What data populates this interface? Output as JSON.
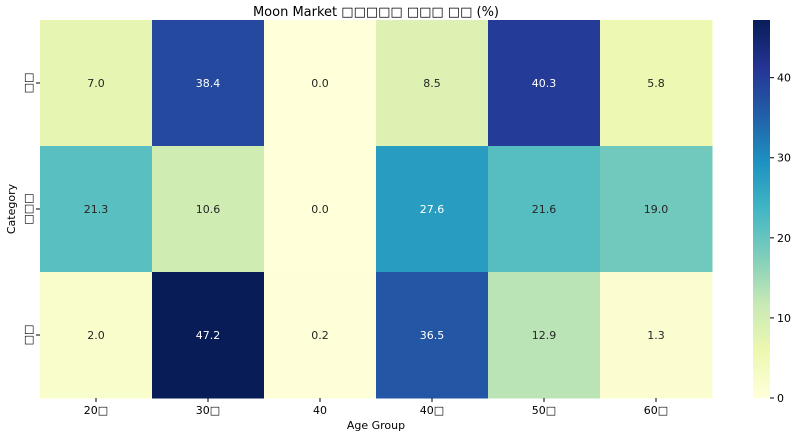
{
  "chart_data": {
    "type": "heatmap",
    "title": "Moon Market □□□□□ □□□ □□ (%)",
    "xlabel": "Age Group",
    "ylabel": "Category",
    "x_categories": [
      "20□",
      "30□",
      "40",
      "40□",
      "50□",
      "60□"
    ],
    "y_categories": [
      "□□",
      "□□□",
      "□□"
    ],
    "values": [
      [
        7.0,
        38.4,
        0.0,
        8.5,
        40.3,
        5.8
      ],
      [
        21.3,
        10.6,
        0.0,
        27.6,
        21.6,
        19.0
      ],
      [
        2.0,
        47.2,
        0.2,
        36.5,
        12.9,
        1.3
      ]
    ],
    "value_format": "0.0",
    "colormap": "YlGnBu",
    "colorbar": {
      "range": [
        0,
        47.2
      ],
      "ticks": [
        0,
        10,
        20,
        30,
        40
      ]
    },
    "grid": false
  }
}
